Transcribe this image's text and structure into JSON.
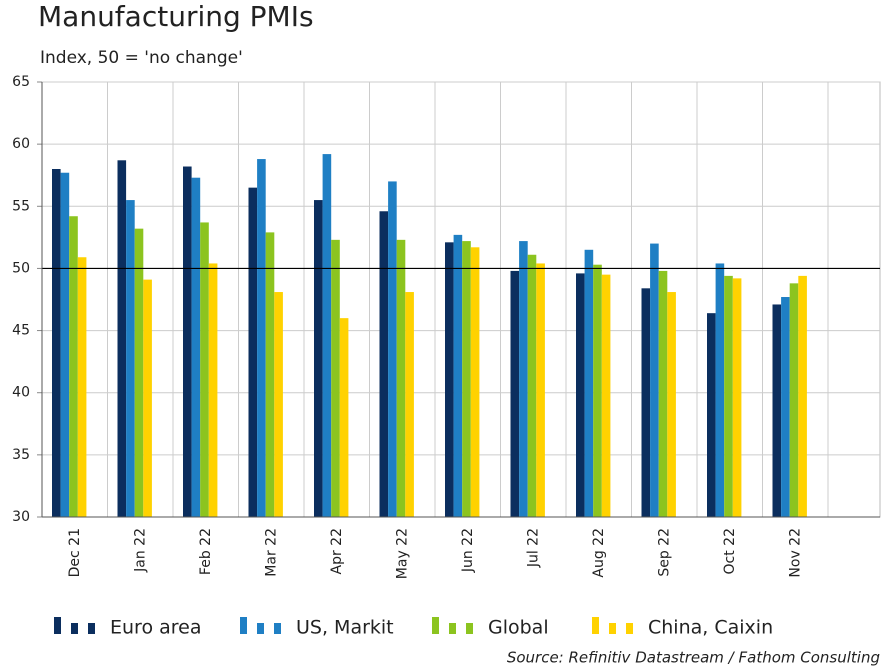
{
  "chart_data": {
    "type": "bar",
    "title": "Manufacturing PMIs",
    "subtitle": "Index, 50 = 'no change'",
    "source": "Source: Refinitiv Datastream / Fathom Consulting",
    "categories": [
      "Dec 21",
      "Jan 22",
      "Feb 22",
      "Mar 22",
      "Apr 22",
      "May 22",
      "Jun 22",
      "Jul 22",
      "Aug 22",
      "Sep 22",
      "Oct 22",
      "Nov 22"
    ],
    "series": [
      {
        "name": "Euro area",
        "color": "#0b2e5e",
        "values": [
          58.0,
          58.7,
          58.2,
          56.5,
          55.5,
          54.6,
          52.1,
          49.8,
          49.6,
          48.4,
          46.4,
          47.1
        ]
      },
      {
        "name": "US, Markit",
        "color": "#1f7fc4",
        "values": [
          57.7,
          55.5,
          57.3,
          58.8,
          59.2,
          57.0,
          52.7,
          52.2,
          51.5,
          52.0,
          50.4,
          47.7
        ]
      },
      {
        "name": "Global",
        "color": "#8cc41f",
        "values": [
          54.2,
          53.2,
          53.7,
          52.9,
          52.3,
          52.3,
          52.2,
          51.1,
          50.3,
          49.8,
          49.4,
          48.8
        ]
      },
      {
        "name": "China, Caixin",
        "color": "#ffd200",
        "values": [
          50.9,
          49.1,
          50.4,
          48.1,
          46.0,
          48.1,
          51.7,
          50.4,
          49.5,
          48.1,
          49.2,
          49.4
        ]
      }
    ],
    "ylim": [
      30,
      65
    ],
    "yticks": [
      30,
      35,
      40,
      45,
      50,
      55,
      60,
      65
    ],
    "grid": true,
    "reference_line": 50,
    "legend": "bottom"
  }
}
